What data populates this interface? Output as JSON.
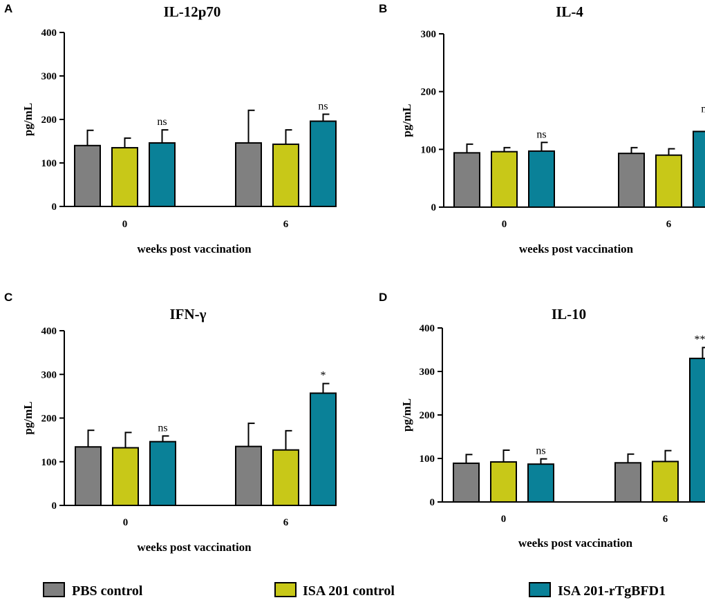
{
  "colors": {
    "PBS control": "#808080",
    "ISA 201 control": "#c8c818",
    "ISA 201-rTgBFD1": "#0a8198"
  },
  "legend": [
    "PBS control",
    "ISA 201 control",
    "ISA 201-rTgBFD1"
  ],
  "chart_data": [
    {
      "panel": "A",
      "type": "bar",
      "title": "IL-12p70",
      "ylabel": "pg/mL",
      "xlabel": "weeks post vaccination",
      "categories": [
        "0",
        "6"
      ],
      "ylim": [
        0,
        400
      ],
      "yticks": [
        0,
        100,
        200,
        300,
        400
      ],
      "series": [
        {
          "name": "PBS control",
          "values": [
            140,
            146
          ],
          "errors": [
            35,
            75
          ]
        },
        {
          "name": "ISA 201 control",
          "values": [
            135,
            143
          ],
          "errors": [
            22,
            33
          ]
        },
        {
          "name": "ISA 201-rTgBFD1",
          "values": [
            146,
            196
          ],
          "errors": [
            30,
            16
          ]
        }
      ],
      "annotations": [
        "ns",
        "ns"
      ]
    },
    {
      "panel": "B",
      "type": "bar",
      "title": "IL-4",
      "ylabel": "pg/mL",
      "xlabel": "weeks post vaccination",
      "categories": [
        "0",
        "6"
      ],
      "ylim": [
        0,
        300
      ],
      "yticks": [
        0,
        100,
        200,
        300
      ],
      "series": [
        {
          "name": "PBS control",
          "values": [
            94,
            93
          ],
          "errors": [
            15,
            10
          ]
        },
        {
          "name": "ISA 201 control",
          "values": [
            96,
            90
          ],
          "errors": [
            7,
            11
          ]
        },
        {
          "name": "ISA 201-rTgBFD1",
          "values": [
            97,
            131
          ],
          "errors": [
            15,
            25
          ]
        }
      ],
      "annotations": [
        "ns",
        "ns"
      ]
    },
    {
      "panel": "C",
      "type": "bar",
      "title": "IFN-γ",
      "ylabel": "pg/mL",
      "xlabel": "weeks post vaccination",
      "categories": [
        "0",
        "6"
      ],
      "ylim": [
        0,
        400
      ],
      "yticks": [
        0,
        100,
        200,
        300,
        400
      ],
      "series": [
        {
          "name": "PBS control",
          "values": [
            134,
            135
          ],
          "errors": [
            38,
            53
          ]
        },
        {
          "name": "ISA 201 control",
          "values": [
            132,
            127
          ],
          "errors": [
            35,
            44
          ]
        },
        {
          "name": "ISA 201-rTgBFD1",
          "values": [
            146,
            257
          ],
          "errors": [
            13,
            22
          ]
        }
      ],
      "annotations": [
        "ns",
        "*"
      ]
    },
    {
      "panel": "D",
      "type": "bar",
      "title": "IL-10",
      "ylabel": "pg/mL",
      "xlabel": "weeks post vaccination",
      "categories": [
        "0",
        "6"
      ],
      "ylim": [
        0,
        400
      ],
      "yticks": [
        0,
        100,
        200,
        300,
        400
      ],
      "series": [
        {
          "name": "PBS control",
          "values": [
            89,
            90
          ],
          "errors": [
            20,
            20
          ]
        },
        {
          "name": "ISA 201 control",
          "values": [
            92,
            93
          ],
          "errors": [
            27,
            25
          ]
        },
        {
          "name": "ISA 201-rTgBFD1",
          "values": [
            87,
            330
          ],
          "errors": [
            12,
            25
          ]
        }
      ],
      "annotations": [
        "ns",
        "***"
      ]
    }
  ]
}
